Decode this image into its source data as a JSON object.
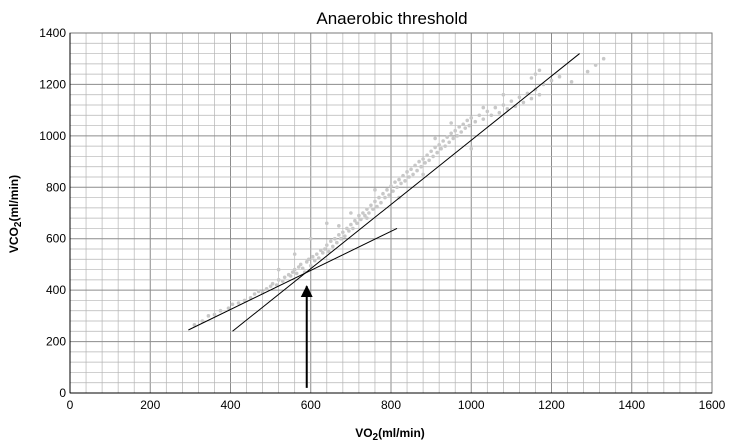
{
  "chart_data": {
    "type": "scatter",
    "title": "Anaerobic threshold",
    "xlabel": {
      "main": "VO",
      "sub": "2",
      "rest": "(ml/min)"
    },
    "ylabel": {
      "main": "VCO",
      "sub": "2",
      "rest": "(ml/min)"
    },
    "xlim": [
      0,
      1600
    ],
    "ylim": [
      0,
      1400
    ],
    "x_ticks": [
      0,
      200,
      400,
      600,
      800,
      1000,
      1200,
      1400,
      1600
    ],
    "y_ticks": [
      0,
      200,
      400,
      600,
      800,
      1000,
      1200,
      1400
    ],
    "x_tick_labels": [
      "0",
      "200",
      "400",
      "600",
      "800",
      "1000",
      "1200",
      "1400",
      "1600"
    ],
    "y_tick_labels": [
      "0",
      "200",
      "400",
      "600",
      "800",
      "1000",
      "1200",
      "1400"
    ],
    "minor_grid_step": {
      "x": 40,
      "y": 40
    },
    "grid": true,
    "legend": "none",
    "colors": {
      "points": "#c8c8c8",
      "lines": "#000000",
      "grid_major": "#8c8c8c",
      "grid_minor": "#b4b4b4"
    },
    "series": [
      {
        "points": [
          [
            310,
            265
          ],
          [
            330,
            280
          ],
          [
            345,
            300
          ],
          [
            360,
            305
          ],
          [
            375,
            320
          ],
          [
            395,
            330
          ],
          [
            405,
            345
          ],
          [
            420,
            350
          ],
          [
            435,
            360
          ],
          [
            450,
            370
          ],
          [
            460,
            385
          ],
          [
            470,
            395
          ],
          [
            480,
            390
          ],
          [
            490,
            405
          ],
          [
            500,
            415
          ],
          [
            505,
            425
          ],
          [
            515,
            420
          ],
          [
            520,
            440
          ],
          [
            530,
            435
          ],
          [
            535,
            450
          ],
          [
            545,
            460
          ],
          [
            550,
            455
          ],
          [
            555,
            470
          ],
          [
            560,
            480
          ],
          [
            565,
            465
          ],
          [
            570,
            490
          ],
          [
            575,
            500
          ],
          [
            580,
            485
          ],
          [
            585,
            470
          ],
          [
            590,
            510
          ],
          [
            595,
            520
          ],
          [
            600,
            495
          ],
          [
            605,
            530
          ],
          [
            610,
            515
          ],
          [
            615,
            540
          ],
          [
            620,
            525
          ],
          [
            625,
            555
          ],
          [
            630,
            545
          ],
          [
            635,
            560
          ],
          [
            640,
            575
          ],
          [
            645,
            550
          ],
          [
            650,
            590
          ],
          [
            655,
            570
          ],
          [
            660,
            600
          ],
          [
            665,
            585
          ],
          [
            670,
            615
          ],
          [
            675,
            600
          ],
          [
            680,
            625
          ],
          [
            685,
            610
          ],
          [
            690,
            640
          ],
          [
            695,
            630
          ],
          [
            700,
            655
          ],
          [
            705,
            640
          ],
          [
            710,
            670
          ],
          [
            715,
            660
          ],
          [
            720,
            690
          ],
          [
            725,
            675
          ],
          [
            730,
            700
          ],
          [
            735,
            690
          ],
          [
            740,
            715
          ],
          [
            745,
            700
          ],
          [
            750,
            730
          ],
          [
            755,
            715
          ],
          [
            760,
            745
          ],
          [
            765,
            725
          ],
          [
            770,
            760
          ],
          [
            775,
            740
          ],
          [
            780,
            775
          ],
          [
            785,
            760
          ],
          [
            790,
            790
          ],
          [
            795,
            770
          ],
          [
            800,
            805
          ],
          [
            805,
            785
          ],
          [
            810,
            820
          ],
          [
            815,
            800
          ],
          [
            820,
            830
          ],
          [
            825,
            815
          ],
          [
            830,
            845
          ],
          [
            835,
            825
          ],
          [
            840,
            860
          ],
          [
            845,
            840
          ],
          [
            850,
            870
          ],
          [
            855,
            850
          ],
          [
            860,
            885
          ],
          [
            865,
            865
          ],
          [
            870,
            900
          ],
          [
            875,
            880
          ],
          [
            880,
            910
          ],
          [
            885,
            895
          ],
          [
            890,
            925
          ],
          [
            895,
            905
          ],
          [
            900,
            940
          ],
          [
            905,
            920
          ],
          [
            910,
            955
          ],
          [
            915,
            935
          ],
          [
            920,
            965
          ],
          [
            925,
            950
          ],
          [
            930,
            980
          ],
          [
            935,
            960
          ],
          [
            940,
            995
          ],
          [
            945,
            975
          ],
          [
            950,
            1010
          ],
          [
            955,
            990
          ],
          [
            960,
            1020
          ],
          [
            965,
            1000
          ],
          [
            970,
            1035
          ],
          [
            975,
            1015
          ],
          [
            980,
            1045
          ],
          [
            985,
            1030
          ],
          [
            990,
            1060
          ],
          [
            995,
            1040
          ],
          [
            1000,
            1070
          ],
          [
            1010,
            1055
          ],
          [
            1020,
            1080
          ],
          [
            1030,
            1065
          ],
          [
            1040,
            1095
          ],
          [
            1050,
            1080
          ],
          [
            1060,
            1110
          ],
          [
            1070,
            1090
          ],
          [
            1080,
            1120
          ],
          [
            1090,
            1105
          ],
          [
            1100,
            1135
          ],
          [
            1110,
            1115
          ],
          [
            1120,
            1150
          ],
          [
            1130,
            1130
          ],
          [
            1140,
            1165
          ],
          [
            1150,
            1145
          ],
          [
            1160,
            1180
          ],
          [
            1170,
            1160
          ],
          [
            1180,
            1200
          ],
          [
            1160,
            1240
          ],
          [
            1170,
            1255
          ],
          [
            1150,
            1225
          ],
          [
            1200,
            1215
          ],
          [
            1220,
            1230
          ],
          [
            1290,
            1250
          ],
          [
            1310,
            1275
          ],
          [
            1330,
            1300
          ],
          [
            1250,
            1210
          ],
          [
            640,
            660
          ],
          [
            700,
            700
          ],
          [
            760,
            790
          ],
          [
            880,
            850
          ],
          [
            950,
            1050
          ],
          [
            1030,
            1110
          ],
          [
            1000,
            950
          ],
          [
            820,
            760
          ],
          [
            740,
            680
          ],
          [
            560,
            540
          ],
          [
            520,
            480
          ],
          [
            600,
            600
          ],
          [
            670,
            650
          ],
          [
            910,
            990
          ],
          [
            1080,
            1160
          ]
        ]
      }
    ],
    "lines": [
      {
        "from": [
          295,
          245
        ],
        "to": [
          815,
          640
        ]
      },
      {
        "from": [
          405,
          240
        ],
        "to": [
          1270,
          1320
        ]
      }
    ],
    "annotations": [
      {
        "type": "arrow",
        "x": 590,
        "from_y": 20,
        "to_y": 415
      }
    ]
  }
}
